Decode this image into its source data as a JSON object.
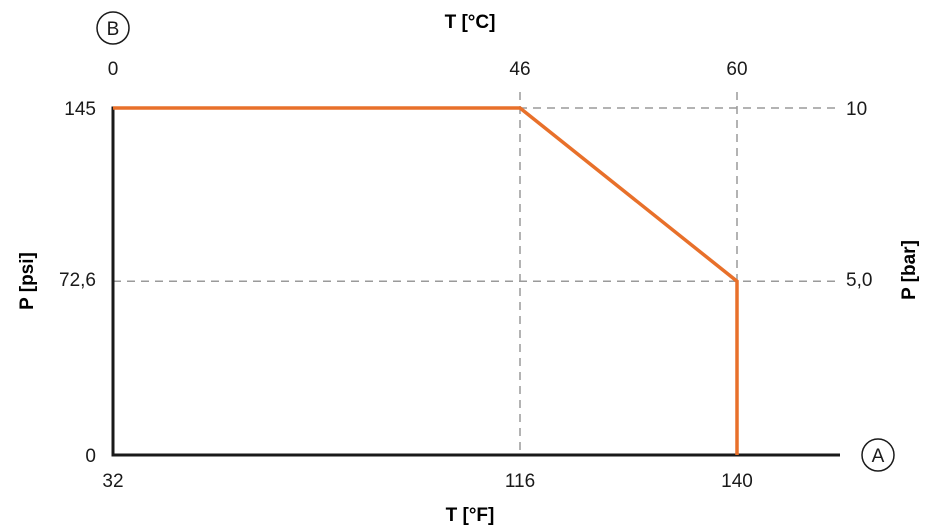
{
  "chart_data": {
    "type": "line",
    "markers": {
      "top_left": "B",
      "bottom_right": "A"
    },
    "x_bottom": {
      "label": "T [°F]",
      "ticks": [
        "32",
        "116",
        "140"
      ],
      "range": [
        32,
        172
      ]
    },
    "x_top": {
      "label": "T [°C]",
      "ticks": [
        "0",
        "46",
        "60"
      ]
    },
    "y_left": {
      "label": "P [psi]",
      "ticks": [
        "0",
        "72,6",
        "145"
      ],
      "range": [
        0,
        145
      ]
    },
    "y_right": {
      "label": "P [bar]",
      "ticks": [
        "5,0",
        "10"
      ]
    },
    "series": [
      {
        "x": [
          32,
          116,
          140,
          140
        ],
        "y": [
          145,
          145,
          72.6,
          0
        ],
        "color": "#e8702a"
      }
    ],
    "grid": {
      "style": "dashed",
      "color": "#9a9a9a",
      "x": [
        116,
        140
      ],
      "y": [
        72.6,
        145
      ]
    },
    "axis_color": "#1a1a1a"
  }
}
